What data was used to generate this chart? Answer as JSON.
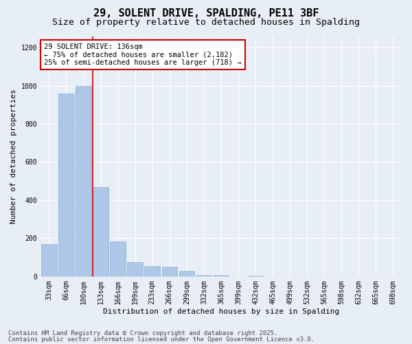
{
  "title_line1": "29, SOLENT DRIVE, SPALDING, PE11 3BF",
  "title_line2": "Size of property relative to detached houses in Spalding",
  "xlabel": "Distribution of detached houses by size in Spalding",
  "ylabel": "Number of detached properties",
  "categories": [
    "33sqm",
    "66sqm",
    "100sqm",
    "133sqm",
    "166sqm",
    "199sqm",
    "233sqm",
    "266sqm",
    "299sqm",
    "332sqm",
    "365sqm",
    "399sqm",
    "432sqm",
    "465sqm",
    "499sqm",
    "532sqm",
    "565sqm",
    "598sqm",
    "632sqm",
    "665sqm",
    "698sqm"
  ],
  "values": [
    170,
    960,
    1000,
    470,
    185,
    75,
    55,
    50,
    30,
    5,
    5,
    0,
    3,
    0,
    0,
    0,
    0,
    0,
    0,
    0,
    0
  ],
  "bar_color": "#aec6e8",
  "bar_edge_color": "#8ab0d0",
  "vline_color": "#cc0000",
  "vline_x_index": 3,
  "annotation_title": "29 SOLENT DRIVE: 136sqm",
  "annotation_line1": "← 75% of detached houses are smaller (2,182)",
  "annotation_line2": "25% of semi-detached houses are larger (718) →",
  "annotation_box_color": "#cc0000",
  "ylim": [
    0,
    1260
  ],
  "yticks": [
    0,
    200,
    400,
    600,
    800,
    1000,
    1200
  ],
  "background_color": "#e8eef5",
  "footnote_line1": "Contains HM Land Registry data © Crown copyright and database right 2025.",
  "footnote_line2": "Contains public sector information licensed under the Open Government Licence v3.0.",
  "title_fontsize": 11,
  "subtitle_fontsize": 9.5,
  "axis_label_fontsize": 8,
  "tick_fontsize": 7,
  "annotation_fontsize": 7.5,
  "footnote_fontsize": 6.5
}
